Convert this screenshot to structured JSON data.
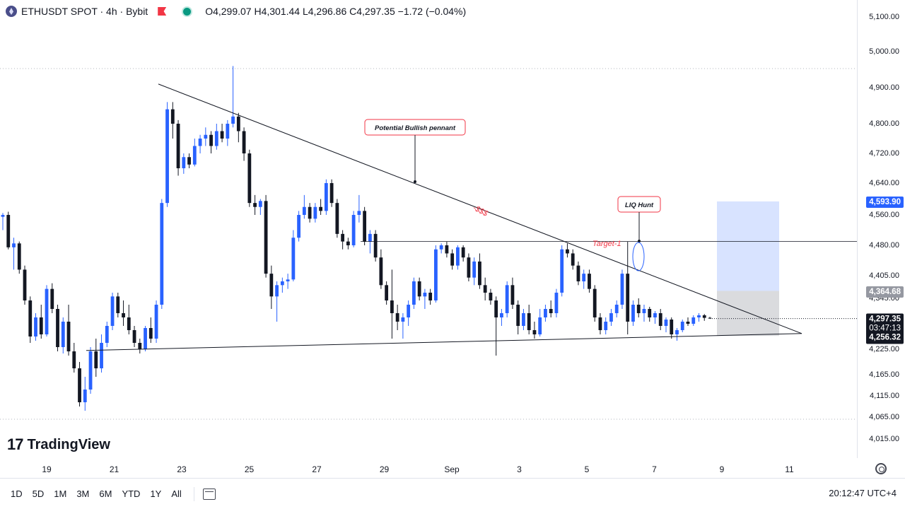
{
  "header": {
    "symbol": "ETHUSDT SPOT · 4h · Bybit",
    "ohlc": "O4,299.07 H4,301.44 L4,296.86 C4,297.35 −1.72 (−0.04%)"
  },
  "colors": {
    "up": "#2962ff",
    "down": "#131722",
    "accent": "#f23645",
    "live": "#089981"
  },
  "y_axis": {
    "ticks": [
      "5,100.00",
      "5,000.00",
      "4,900.00",
      "4,800.00",
      "4,720.00",
      "4,640.00",
      "4,560.00",
      "4,480.00",
      "4,405.00",
      "4,345.00",
      "4,225.00",
      "4,165.00",
      "4,115.00",
      "4,065.00",
      "4,015.00"
    ],
    "tag_target": "4,593.90",
    "tag_entry": "4,364.68",
    "tag_last": "4,297.35",
    "tag_countdown": "03:47:13",
    "tag_stop": "4,256.32"
  },
  "x_axis": {
    "ticks": [
      "19",
      "21",
      "23",
      "25",
      "27",
      "29",
      "Sep",
      "3",
      "5",
      "7",
      "9",
      "11"
    ]
  },
  "annotations": {
    "pennant": "Potential Bullish pennant",
    "liq": "LIQ Hunt",
    "target": "Target-1",
    "dollars": "-$$$"
  },
  "watermark": {
    "mark": "17",
    "text": "TradingView"
  },
  "bottom_bar": {
    "ranges": [
      "1D",
      "5D",
      "1M",
      "3M",
      "6M",
      "YTD",
      "1Y",
      "All"
    ],
    "clock": "20:12:47 UTC+4"
  },
  "chart_data": {
    "type": "candlestick",
    "symbol": "ETHUSDT",
    "timeframe": "4h",
    "ylim": [
      4000,
      5120
    ],
    "x": [
      "19",
      "21",
      "23",
      "25",
      "27",
      "29",
      "Sep",
      "3",
      "5",
      "7",
      "9",
      "11"
    ],
    "candles": [
      {
        "o": 4555,
        "h": 4565,
        "l": 4520,
        "c": 4560
      },
      {
        "o": 4560,
        "h": 4568,
        "l": 4470,
        "c": 4475
      },
      {
        "o": 4475,
        "h": 4500,
        "l": 4420,
        "c": 4485
      },
      {
        "o": 4485,
        "h": 4490,
        "l": 4410,
        "c": 4420
      },
      {
        "o": 4420,
        "h": 4430,
        "l": 4330,
        "c": 4340
      },
      {
        "o": 4340,
        "h": 4350,
        "l": 4240,
        "c": 4255
      },
      {
        "o": 4255,
        "h": 4310,
        "l": 4245,
        "c": 4300
      },
      {
        "o": 4300,
        "h": 4330,
        "l": 4250,
        "c": 4260
      },
      {
        "o": 4260,
        "h": 4380,
        "l": 4255,
        "c": 4370
      },
      {
        "o": 4370,
        "h": 4385,
        "l": 4310,
        "c": 4320
      },
      {
        "o": 4320,
        "h": 4330,
        "l": 4220,
        "c": 4230
      },
      {
        "o": 4230,
        "h": 4300,
        "l": 4215,
        "c": 4290
      },
      {
        "o": 4290,
        "h": 4330,
        "l": 4210,
        "c": 4220
      },
      {
        "o": 4220,
        "h": 4240,
        "l": 4170,
        "c": 4180
      },
      {
        "o": 4180,
        "h": 4195,
        "l": 4090,
        "c": 4100
      },
      {
        "o": 4100,
        "h": 4160,
        "l": 4080,
        "c": 4130
      },
      {
        "o": 4130,
        "h": 4230,
        "l": 4120,
        "c": 4220
      },
      {
        "o": 4220,
        "h": 4250,
        "l": 4160,
        "c": 4180
      },
      {
        "o": 4180,
        "h": 4260,
        "l": 4170,
        "c": 4240
      },
      {
        "o": 4240,
        "h": 4290,
        "l": 4230,
        "c": 4280
      },
      {
        "o": 4280,
        "h": 4360,
        "l": 4270,
        "c": 4350
      },
      {
        "o": 4350,
        "h": 4360,
        "l": 4300,
        "c": 4310
      },
      {
        "o": 4310,
        "h": 4340,
        "l": 4280,
        "c": 4300
      },
      {
        "o": 4300,
        "h": 4330,
        "l": 4260,
        "c": 4270
      },
      {
        "o": 4270,
        "h": 4280,
        "l": 4230,
        "c": 4240
      },
      {
        "o": 4240,
        "h": 4250,
        "l": 4215,
        "c": 4225
      },
      {
        "o": 4225,
        "h": 4280,
        "l": 4220,
        "c": 4275
      },
      {
        "o": 4275,
        "h": 4300,
        "l": 4240,
        "c": 4250
      },
      {
        "o": 4250,
        "h": 4340,
        "l": 4240,
        "c": 4330
      },
      {
        "o": 4330,
        "h": 4600,
        "l": 4320,
        "c": 4590
      },
      {
        "o": 4590,
        "h": 4860,
        "l": 4580,
        "c": 4840
      },
      {
        "o": 4840,
        "h": 4860,
        "l": 4760,
        "c": 4800
      },
      {
        "o": 4800,
        "h": 4810,
        "l": 4660,
        "c": 4680
      },
      {
        "o": 4680,
        "h": 4720,
        "l": 4665,
        "c": 4710
      },
      {
        "o": 4710,
        "h": 4720,
        "l": 4680,
        "c": 4690
      },
      {
        "o": 4690,
        "h": 4760,
        "l": 4685,
        "c": 4740
      },
      {
        "o": 4740,
        "h": 4770,
        "l": 4720,
        "c": 4760
      },
      {
        "o": 4760,
        "h": 4790,
        "l": 4740,
        "c": 4770
      },
      {
        "o": 4770,
        "h": 4780,
        "l": 4720,
        "c": 4740
      },
      {
        "o": 4740,
        "h": 4800,
        "l": 4730,
        "c": 4780
      },
      {
        "o": 4780,
        "h": 4800,
        "l": 4750,
        "c": 4760
      },
      {
        "o": 4760,
        "h": 4810,
        "l": 4740,
        "c": 4800
      },
      {
        "o": 4800,
        "h": 4960,
        "l": 4790,
        "c": 4820
      },
      {
        "o": 4820,
        "h": 4830,
        "l": 4750,
        "c": 4780
      },
      {
        "o": 4780,
        "h": 4790,
        "l": 4700,
        "c": 4720
      },
      {
        "o": 4720,
        "h": 4730,
        "l": 4580,
        "c": 4590
      },
      {
        "o": 4590,
        "h": 4610,
        "l": 4560,
        "c": 4580
      },
      {
        "o": 4580,
        "h": 4600,
        "l": 4560,
        "c": 4595
      },
      {
        "o": 4595,
        "h": 4610,
        "l": 4400,
        "c": 4410
      },
      {
        "o": 4410,
        "h": 4430,
        "l": 4320,
        "c": 4350
      },
      {
        "o": 4350,
        "h": 4390,
        "l": 4290,
        "c": 4380
      },
      {
        "o": 4380,
        "h": 4400,
        "l": 4360,
        "c": 4390
      },
      {
        "o": 4390,
        "h": 4410,
        "l": 4370,
        "c": 4395
      },
      {
        "o": 4395,
        "h": 4520,
        "l": 4390,
        "c": 4500
      },
      {
        "o": 4500,
        "h": 4570,
        "l": 4490,
        "c": 4560
      },
      {
        "o": 4560,
        "h": 4610,
        "l": 4550,
        "c": 4580
      },
      {
        "o": 4580,
        "h": 4590,
        "l": 4540,
        "c": 4550
      },
      {
        "o": 4550,
        "h": 4590,
        "l": 4540,
        "c": 4580
      },
      {
        "o": 4580,
        "h": 4600,
        "l": 4560,
        "c": 4570
      },
      {
        "o": 4570,
        "h": 4650,
        "l": 4560,
        "c": 4640
      },
      {
        "o": 4640,
        "h": 4650,
        "l": 4580,
        "c": 4590
      },
      {
        "o": 4590,
        "h": 4600,
        "l": 4500,
        "c": 4510
      },
      {
        "o": 4510,
        "h": 4520,
        "l": 4470,
        "c": 4490
      },
      {
        "o": 4490,
        "h": 4500,
        "l": 4470,
        "c": 4480
      },
      {
        "o": 4480,
        "h": 4570,
        "l": 4475,
        "c": 4560
      },
      {
        "o": 4560,
        "h": 4610,
        "l": 4540,
        "c": 4570
      },
      {
        "o": 4570,
        "h": 4580,
        "l": 4480,
        "c": 4490
      },
      {
        "o": 4490,
        "h": 4520,
        "l": 4460,
        "c": 4510
      },
      {
        "o": 4510,
        "h": 4520,
        "l": 4440,
        "c": 4450
      },
      {
        "o": 4450,
        "h": 4470,
        "l": 4370,
        "c": 4380
      },
      {
        "o": 4380,
        "h": 4390,
        "l": 4330,
        "c": 4340
      },
      {
        "o": 4340,
        "h": 4420,
        "l": 4250,
        "c": 4310
      },
      {
        "o": 4310,
        "h": 4330,
        "l": 4270,
        "c": 4290
      },
      {
        "o": 4290,
        "h": 4310,
        "l": 4250,
        "c": 4300
      },
      {
        "o": 4300,
        "h": 4340,
        "l": 4280,
        "c": 4330
      },
      {
        "o": 4330,
        "h": 4400,
        "l": 4320,
        "c": 4390
      },
      {
        "o": 4390,
        "h": 4400,
        "l": 4340,
        "c": 4350
      },
      {
        "o": 4350,
        "h": 4370,
        "l": 4320,
        "c": 4360
      },
      {
        "o": 4360,
        "h": 4370,
        "l": 4330,
        "c": 4340
      },
      {
        "o": 4340,
        "h": 4480,
        "l": 4335,
        "c": 4470
      },
      {
        "o": 4470,
        "h": 4485,
        "l": 4460,
        "c": 4480
      },
      {
        "o": 4480,
        "h": 4490,
        "l": 4450,
        "c": 4460
      },
      {
        "o": 4460,
        "h": 4470,
        "l": 4420,
        "c": 4430
      },
      {
        "o": 4430,
        "h": 4480,
        "l": 4420,
        "c": 4475
      },
      {
        "o": 4475,
        "h": 4480,
        "l": 4440,
        "c": 4450
      },
      {
        "o": 4450,
        "h": 4460,
        "l": 4390,
        "c": 4400
      },
      {
        "o": 4400,
        "h": 4450,
        "l": 4380,
        "c": 4440
      },
      {
        "o": 4440,
        "h": 4460,
        "l": 4370,
        "c": 4380
      },
      {
        "o": 4380,
        "h": 4400,
        "l": 4340,
        "c": 4360
      },
      {
        "o": 4360,
        "h": 4370,
        "l": 4330,
        "c": 4340
      },
      {
        "o": 4340,
        "h": 4350,
        "l": 4210,
        "c": 4300
      },
      {
        "o": 4300,
        "h": 4320,
        "l": 4280,
        "c": 4310
      },
      {
        "o": 4310,
        "h": 4390,
        "l": 4300,
        "c": 4380
      },
      {
        "o": 4380,
        "h": 4400,
        "l": 4320,
        "c": 4330
      },
      {
        "o": 4330,
        "h": 4340,
        "l": 4260,
        "c": 4280
      },
      {
        "o": 4280,
        "h": 4320,
        "l": 4270,
        "c": 4310
      },
      {
        "o": 4310,
        "h": 4330,
        "l": 4260,
        "c": 4270
      },
      {
        "o": 4270,
        "h": 4290,
        "l": 4250,
        "c": 4260
      },
      {
        "o": 4260,
        "h": 4320,
        "l": 4255,
        "c": 4300
      },
      {
        "o": 4300,
        "h": 4330,
        "l": 4290,
        "c": 4320
      },
      {
        "o": 4320,
        "h": 4340,
        "l": 4300,
        "c": 4310
      },
      {
        "o": 4310,
        "h": 4370,
        "l": 4300,
        "c": 4360
      },
      {
        "o": 4360,
        "h": 4480,
        "l": 4350,
        "c": 4470
      },
      {
        "o": 4470,
        "h": 4485,
        "l": 4450,
        "c": 4460
      },
      {
        "o": 4460,
        "h": 4470,
        "l": 4420,
        "c": 4430
      },
      {
        "o": 4430,
        "h": 4440,
        "l": 4380,
        "c": 4390
      },
      {
        "o": 4390,
        "h": 4420,
        "l": 4370,
        "c": 4410
      },
      {
        "o": 4410,
        "h": 4420,
        "l": 4360,
        "c": 4370
      },
      {
        "o": 4370,
        "h": 4380,
        "l": 4290,
        "c": 4300
      },
      {
        "o": 4300,
        "h": 4310,
        "l": 4260,
        "c": 4270
      },
      {
        "o": 4270,
        "h": 4300,
        "l": 4260,
        "c": 4290
      },
      {
        "o": 4290,
        "h": 4320,
        "l": 4280,
        "c": 4310
      },
      {
        "o": 4310,
        "h": 4340,
        "l": 4300,
        "c": 4330
      },
      {
        "o": 4330,
        "h": 4420,
        "l": 4320,
        "c": 4410
      },
      {
        "o": 4410,
        "h": 4490,
        "l": 4260,
        "c": 4290
      },
      {
        "o": 4290,
        "h": 4340,
        "l": 4280,
        "c": 4330
      },
      {
        "o": 4330,
        "h": 4345,
        "l": 4300,
        "c": 4310
      },
      {
        "o": 4310,
        "h": 4330,
        "l": 4290,
        "c": 4320
      },
      {
        "o": 4320,
        "h": 4325,
        "l": 4290,
        "c": 4300
      },
      {
        "o": 4300,
        "h": 4315,
        "l": 4285,
        "c": 4310
      },
      {
        "o": 4310,
        "h": 4320,
        "l": 4270,
        "c": 4280
      },
      {
        "o": 4280,
        "h": 4300,
        "l": 4265,
        "c": 4295
      },
      {
        "o": 4295,
        "h": 4300,
        "l": 4250,
        "c": 4260
      },
      {
        "o": 4260,
        "h": 4275,
        "l": 4245,
        "c": 4270
      },
      {
        "o": 4270,
        "h": 4295,
        "l": 4265,
        "c": 4290
      },
      {
        "o": 4290,
        "h": 4300,
        "l": 4280,
        "c": 4285
      },
      {
        "o": 4285,
        "h": 4305,
        "l": 4280,
        "c": 4300
      },
      {
        "o": 4300,
        "h": 4310,
        "l": 4290,
        "c": 4305
      },
      {
        "o": 4305,
        "h": 4308,
        "l": 4292,
        "c": 4299
      },
      {
        "o": 4299.07,
        "h": 4301.44,
        "l": 4296.86,
        "c": 4297.35
      }
    ],
    "drawings": {
      "resistance_line": [
        4910,
        4262
      ],
      "support_line": [
        4222,
        4262
      ],
      "target_1_level": 4490,
      "long_target": 4593.9,
      "long_entry": 4364.68,
      "long_stop": 4256.32
    }
  }
}
